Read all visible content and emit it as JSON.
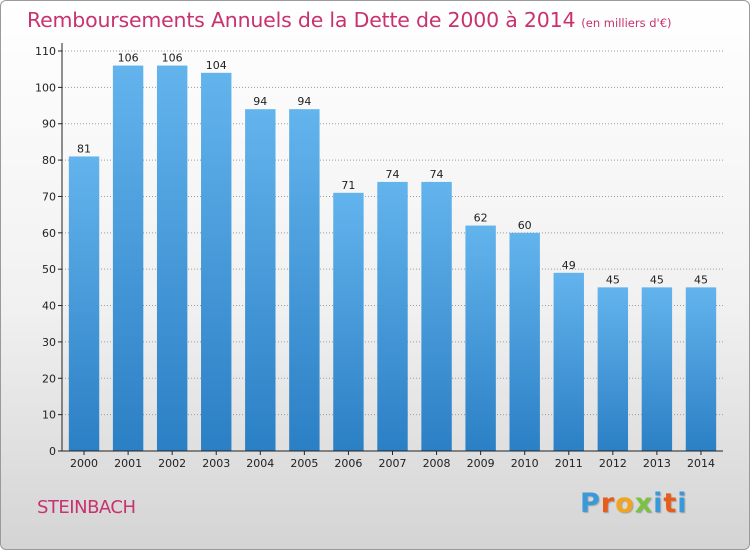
{
  "colors": {
    "accent": "#c8326e",
    "bar_top": "#63b4ed",
    "bar_bottom": "#2b7fc4",
    "axis": "#222222",
    "grid": "#9c9c9c",
    "logo_letters": [
      "#3a9ad9",
      "#e85c1b",
      "#f2a41d",
      "#7cc242",
      "#3a9ad9",
      "#e85c1b"
    ]
  },
  "chart_data": {
    "type": "bar",
    "title": "Remboursements Annuels de la Dette de 2000 à 2014",
    "subtitle": "(en milliers d'€)",
    "xlabel": "",
    "ylabel": "",
    "categories": [
      "2000",
      "2001",
      "2002",
      "2003",
      "2004",
      "2005",
      "2006",
      "2007",
      "2008",
      "2009",
      "2010",
      "2011",
      "2012",
      "2013",
      "2014"
    ],
    "values": [
      81,
      106,
      106,
      104,
      94,
      94,
      71,
      74,
      74,
      62,
      60,
      49,
      45,
      45,
      45
    ],
    "ylim": [
      0,
      110
    ],
    "yticks": [
      0,
      10,
      20,
      30,
      40,
      50,
      60,
      70,
      80,
      90,
      100,
      110
    ],
    "grid": true,
    "legend": "none"
  },
  "footer": {
    "city": "STEINBACH",
    "logo_text": "Proxiti"
  }
}
